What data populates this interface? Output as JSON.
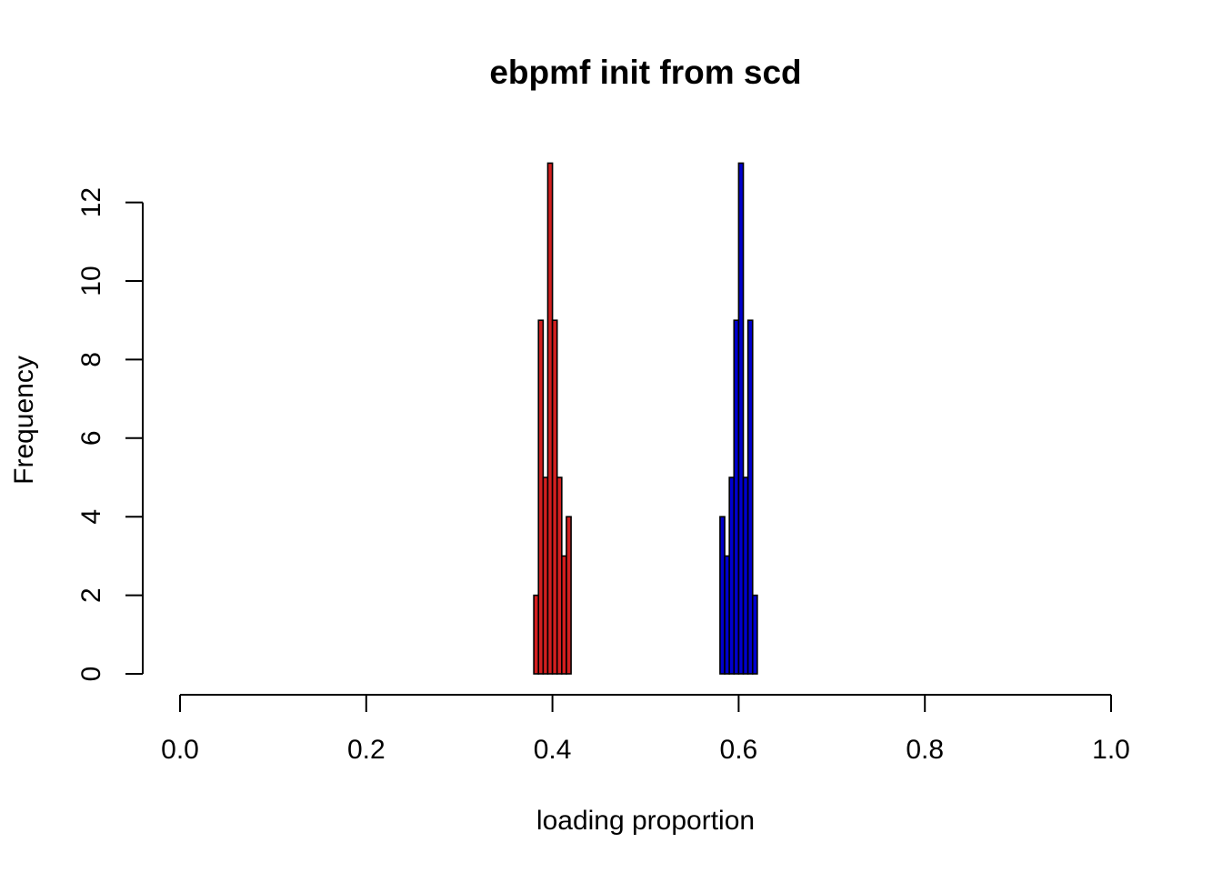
{
  "chart_data": {
    "type": "bar",
    "title": "ebpmf init from scd",
    "xlabel": "loading proportion",
    "ylabel": "Frequency",
    "xlim": [
      0.0,
      1.0
    ],
    "ylim": [
      0,
      13
    ],
    "x_ticks": [
      "0.0",
      "0.2",
      "0.4",
      "0.6",
      "0.8",
      "1.0"
    ],
    "y_ticks": [
      "0",
      "2",
      "4",
      "6",
      "8",
      "10",
      "12"
    ],
    "grid": false,
    "bin_width": 0.005,
    "series": [
      {
        "color": "#d21f1f",
        "bin_starts": [
          0.38,
          0.385,
          0.39,
          0.395,
          0.4,
          0.405,
          0.41,
          0.415
        ],
        "values": [
          2,
          9,
          5,
          13,
          9,
          5,
          3,
          4
        ]
      },
      {
        "color": "#0000cd",
        "bin_starts": [
          0.58,
          0.585,
          0.59,
          0.595,
          0.6,
          0.605,
          0.61,
          0.615
        ],
        "values": [
          4,
          3,
          5,
          9,
          13,
          5,
          9,
          2
        ]
      }
    ]
  }
}
